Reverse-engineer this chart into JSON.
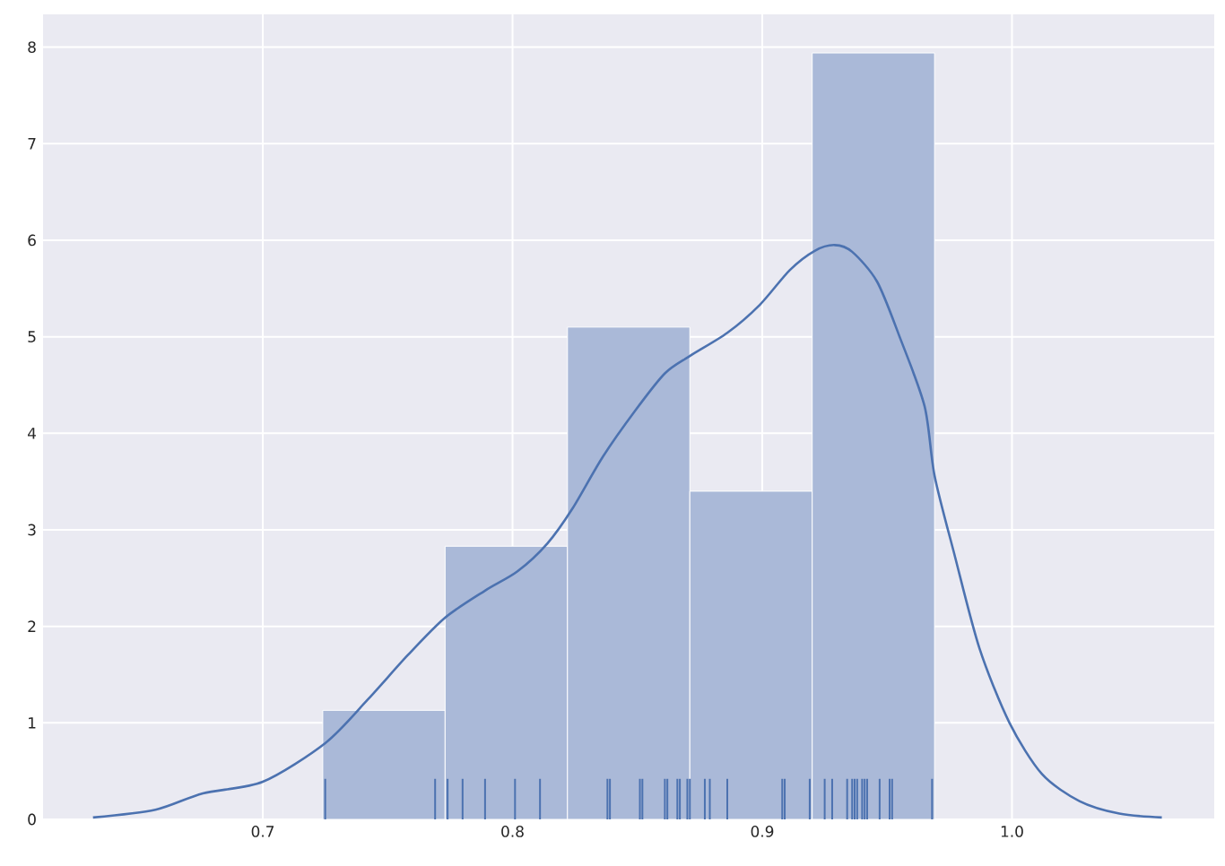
{
  "chart_data": {
    "type": "histogram",
    "bins": [
      0.724,
      0.773,
      0.822,
      0.871,
      0.92,
      0.969
    ],
    "values": [
      1.13,
      2.83,
      5.1,
      3.4,
      7.94
    ],
    "color": "#aab9d8",
    "series": [
      {
        "type": "line",
        "color": "#4c72b0",
        "x": [
          0.632,
          0.657,
          0.676,
          0.7,
          0.725,
          0.742,
          0.758,
          0.773,
          0.789,
          0.802,
          0.814,
          0.824,
          0.836,
          0.849,
          0.861,
          0.871,
          0.886,
          0.899,
          0.911,
          0.921,
          0.929,
          0.936,
          0.946,
          0.955,
          0.965,
          0.969,
          0.977,
          0.987,
          0.999,
          1.012,
          1.027,
          1.043,
          1.06
        ],
        "values": [
          0.02,
          0.1,
          0.27,
          0.39,
          0.79,
          1.24,
          1.7,
          2.09,
          2.37,
          2.57,
          2.86,
          3.22,
          3.75,
          4.23,
          4.62,
          4.8,
          5.04,
          5.33,
          5.69,
          5.89,
          5.95,
          5.88,
          5.57,
          5.0,
          4.28,
          3.56,
          2.74,
          1.77,
          1.0,
          0.47,
          0.19,
          0.06,
          0.02
        ]
      },
      {
        "type": "bar",
        "color": "#4c72b0",
        "x": [
          0.725,
          0.769,
          0.774,
          0.78,
          0.789,
          0.801,
          0.811,
          0.838,
          0.839,
          0.851,
          0.852,
          0.861,
          0.862,
          0.866,
          0.867,
          0.87,
          0.871,
          0.877,
          0.879,
          0.886,
          0.908,
          0.909,
          0.919,
          0.925,
          0.928,
          0.934,
          0.936,
          0.937,
          0.938,
          0.94,
          0.941,
          0.942,
          0.947,
          0.951,
          0.952,
          0.968
        ],
        "values": [
          0.42,
          0.42,
          0.42,
          0.42,
          0.42,
          0.42,
          0.42,
          0.42,
          0.42,
          0.42,
          0.42,
          0.42,
          0.42,
          0.42,
          0.42,
          0.42,
          0.42,
          0.42,
          0.42,
          0.42,
          0.42,
          0.42,
          0.42,
          0.42,
          0.42,
          0.42,
          0.42,
          0.42,
          0.42,
          0.42,
          0.42,
          0.42,
          0.42,
          0.42,
          0.42,
          0.42
        ]
      }
    ],
    "xlim": [
      0.612,
      1.081
    ],
    "ylim": [
      0,
      8.34
    ],
    "xticks": [
      0.7,
      0.8,
      0.9,
      {
        "value": 1.0,
        "label": "1.0"
      }
    ],
    "yticks": [
      0,
      1,
      2,
      3,
      4,
      5,
      6,
      7,
      8
    ],
    "grid": true
  }
}
